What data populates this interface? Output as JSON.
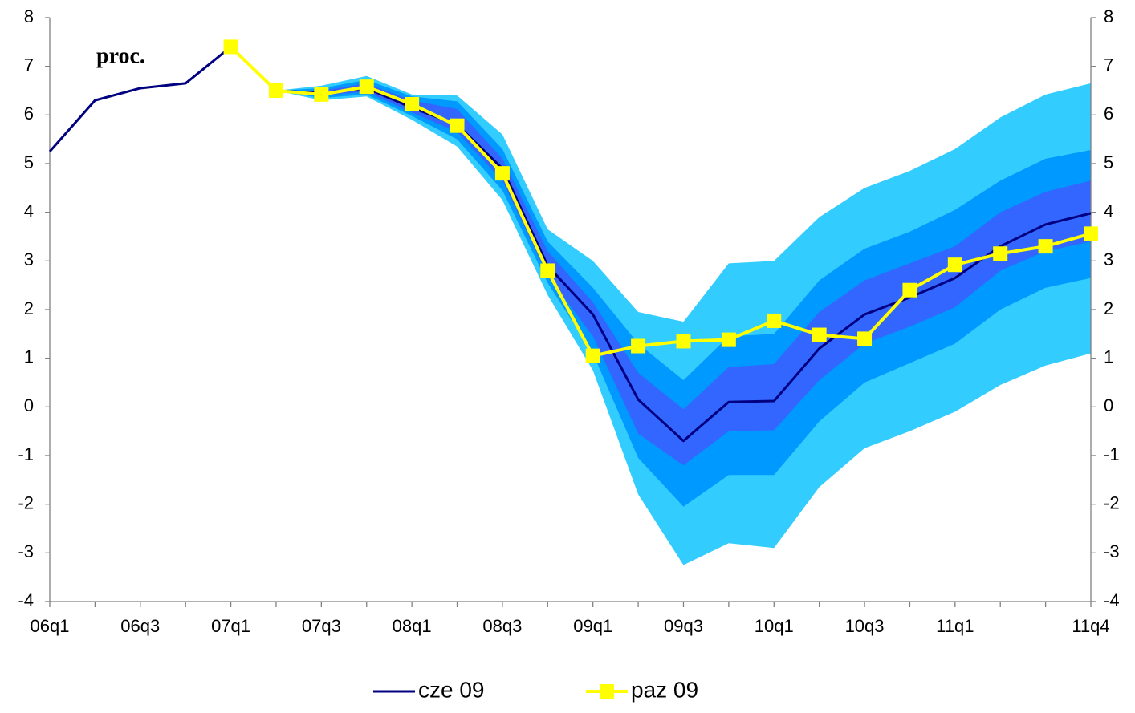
{
  "chart_data": {
    "type": "fan-line",
    "annotation": "proc.",
    "categories": [
      "06q1",
      null,
      "06q3",
      null,
      "07q1",
      null,
      "07q3",
      null,
      "08q1",
      null,
      "08q3",
      null,
      "09q1",
      null,
      "09q3",
      null,
      "10q1",
      null,
      "10q3",
      null,
      "11q1",
      null,
      null,
      "11q4"
    ],
    "ylim": [
      -4,
      8
    ],
    "yticks": [
      -4,
      -3,
      -2,
      -1,
      0,
      1,
      2,
      3,
      4,
      5,
      6,
      7,
      8
    ],
    "y2lim": [
      -4,
      8
    ],
    "y2ticks": [
      -4,
      -3,
      -2,
      -1,
      0,
      1,
      2,
      3,
      4,
      5,
      6,
      7,
      8
    ],
    "fan": [
      {
        "color": "#33ccff",
        "upper": [
          null,
          null,
          null,
          null,
          null,
          6.5,
          6.6,
          6.8,
          6.42,
          6.4,
          5.6,
          3.65,
          3.0,
          1.95,
          1.75,
          2.95,
          3.0,
          3.9,
          4.5,
          4.85,
          5.3,
          5.95,
          6.42,
          6.65
        ],
        "lower": [
          null,
          null,
          null,
          null,
          null,
          6.5,
          6.3,
          6.38,
          5.9,
          5.35,
          4.25,
          2.3,
          0.75,
          -1.8,
          -3.25,
          -2.8,
          -2.9,
          -1.65,
          -0.85,
          -0.5,
          -0.1,
          0.45,
          0.85,
          1.1
        ]
      },
      {
        "color": "#0099ff",
        "upper": [
          null,
          null,
          null,
          null,
          null,
          6.5,
          6.55,
          6.72,
          6.38,
          6.28,
          5.3,
          3.4,
          2.45,
          1.3,
          0.55,
          1.45,
          1.5,
          2.6,
          3.25,
          3.6,
          4.05,
          4.65,
          5.1,
          5.28
        ],
        "lower": [
          null,
          null,
          null,
          null,
          null,
          6.5,
          6.35,
          6.42,
          5.98,
          5.5,
          4.45,
          2.55,
          1.1,
          -1.05,
          -2.05,
          -1.4,
          -1.4,
          -0.3,
          0.5,
          0.9,
          1.3,
          2.0,
          2.45,
          2.65
        ]
      },
      {
        "color": "#3366ff",
        "upper": [
          null,
          null,
          null,
          null,
          null,
          6.5,
          6.5,
          6.65,
          6.3,
          6.12,
          5.1,
          3.2,
          2.15,
          0.7,
          -0.05,
          0.82,
          0.88,
          1.95,
          2.6,
          2.95,
          3.3,
          4.0,
          4.42,
          4.65
        ],
        "lower": [
          null,
          null,
          null,
          null,
          null,
          6.5,
          6.4,
          6.48,
          6.05,
          5.65,
          4.65,
          2.7,
          1.45,
          -0.55,
          -1.2,
          -0.5,
          -0.48,
          0.55,
          1.3,
          1.65,
          2.05,
          2.8,
          3.2,
          3.4
        ]
      }
    ],
    "series": [
      {
        "name": "cze 09",
        "color": "#000080",
        "marker": false,
        "values": [
          5.25,
          6.3,
          6.55,
          6.65,
          7.4,
          6.5,
          6.45,
          6.55,
          6.15,
          5.8,
          4.9,
          2.9,
          1.9,
          0.15,
          -0.7,
          0.1,
          0.12,
          1.2,
          1.9,
          2.25,
          2.65,
          3.3,
          3.75,
          3.98
        ]
      },
      {
        "name": "paz 09",
        "color": "#ffff00",
        "marker": true,
        "values": [
          null,
          null,
          null,
          null,
          7.4,
          6.5,
          6.42,
          6.58,
          6.22,
          5.78,
          4.8,
          2.8,
          1.05,
          1.25,
          1.35,
          1.38,
          1.77,
          1.48,
          1.4,
          2.4,
          2.92,
          3.15,
          3.3,
          3.56
        ]
      }
    ]
  }
}
